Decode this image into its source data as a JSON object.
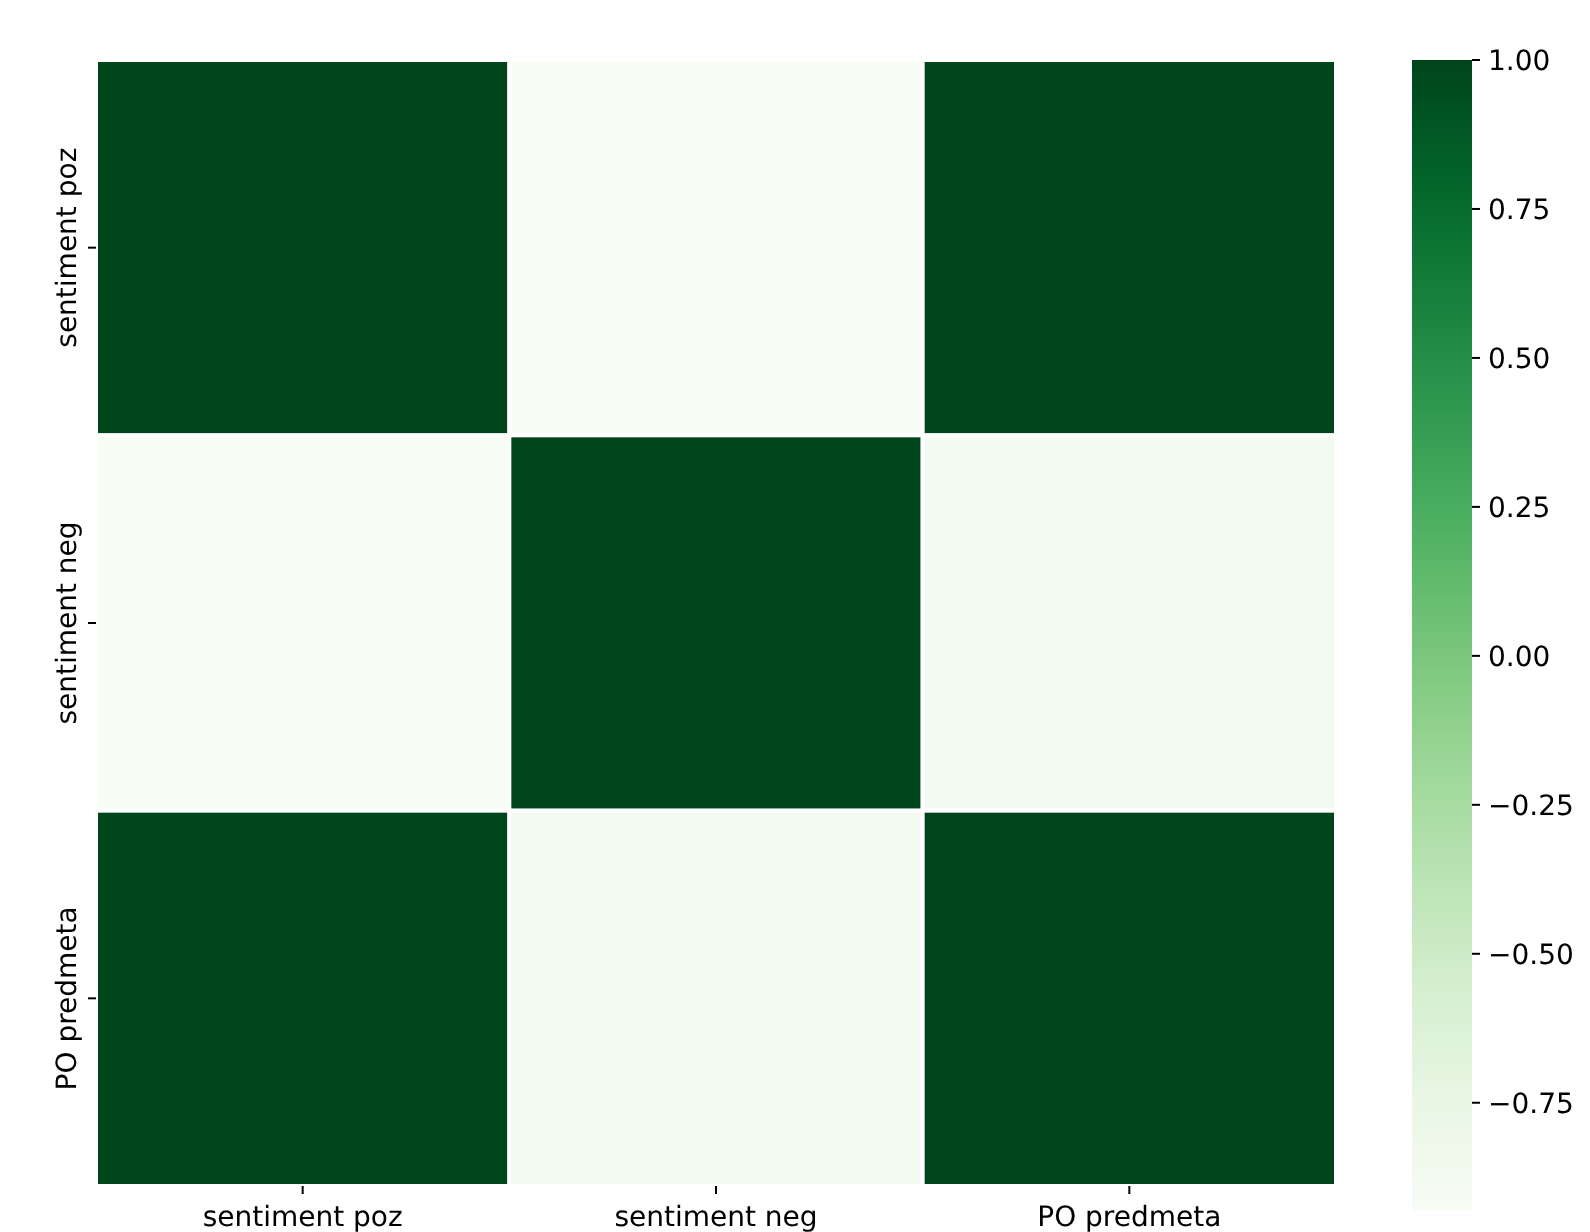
{
  "chart_data": {
    "type": "heatmap",
    "categories": [
      "sentiment poz",
      "sentiment neg",
      "PO predmeta"
    ],
    "y_categories": [
      "sentiment poz",
      "sentiment neg",
      "PO predmeta"
    ],
    "cells": [
      [
        1,
        -0.93,
        0.99
      ],
      [
        -0.93,
        1,
        -0.88
      ],
      [
        0.99,
        -0.88,
        1
      ]
    ],
    "clim": [
      -0.93,
      1
    ],
    "cticks": [
      {
        "value": -0.75,
        "label": "−0.75"
      },
      {
        "value": -0.5,
        "label": "−0.50"
      },
      {
        "value": -0.25,
        "label": "−0.25"
      },
      {
        "value": 0,
        "label": "0.00"
      },
      {
        "value": 0.25,
        "label": "0.25"
      },
      {
        "value": 0.5,
        "label": "0.50"
      },
      {
        "value": 0.75,
        "label": "0.75"
      },
      {
        "value": 1,
        "label": "1.00"
      }
    ]
  }
}
